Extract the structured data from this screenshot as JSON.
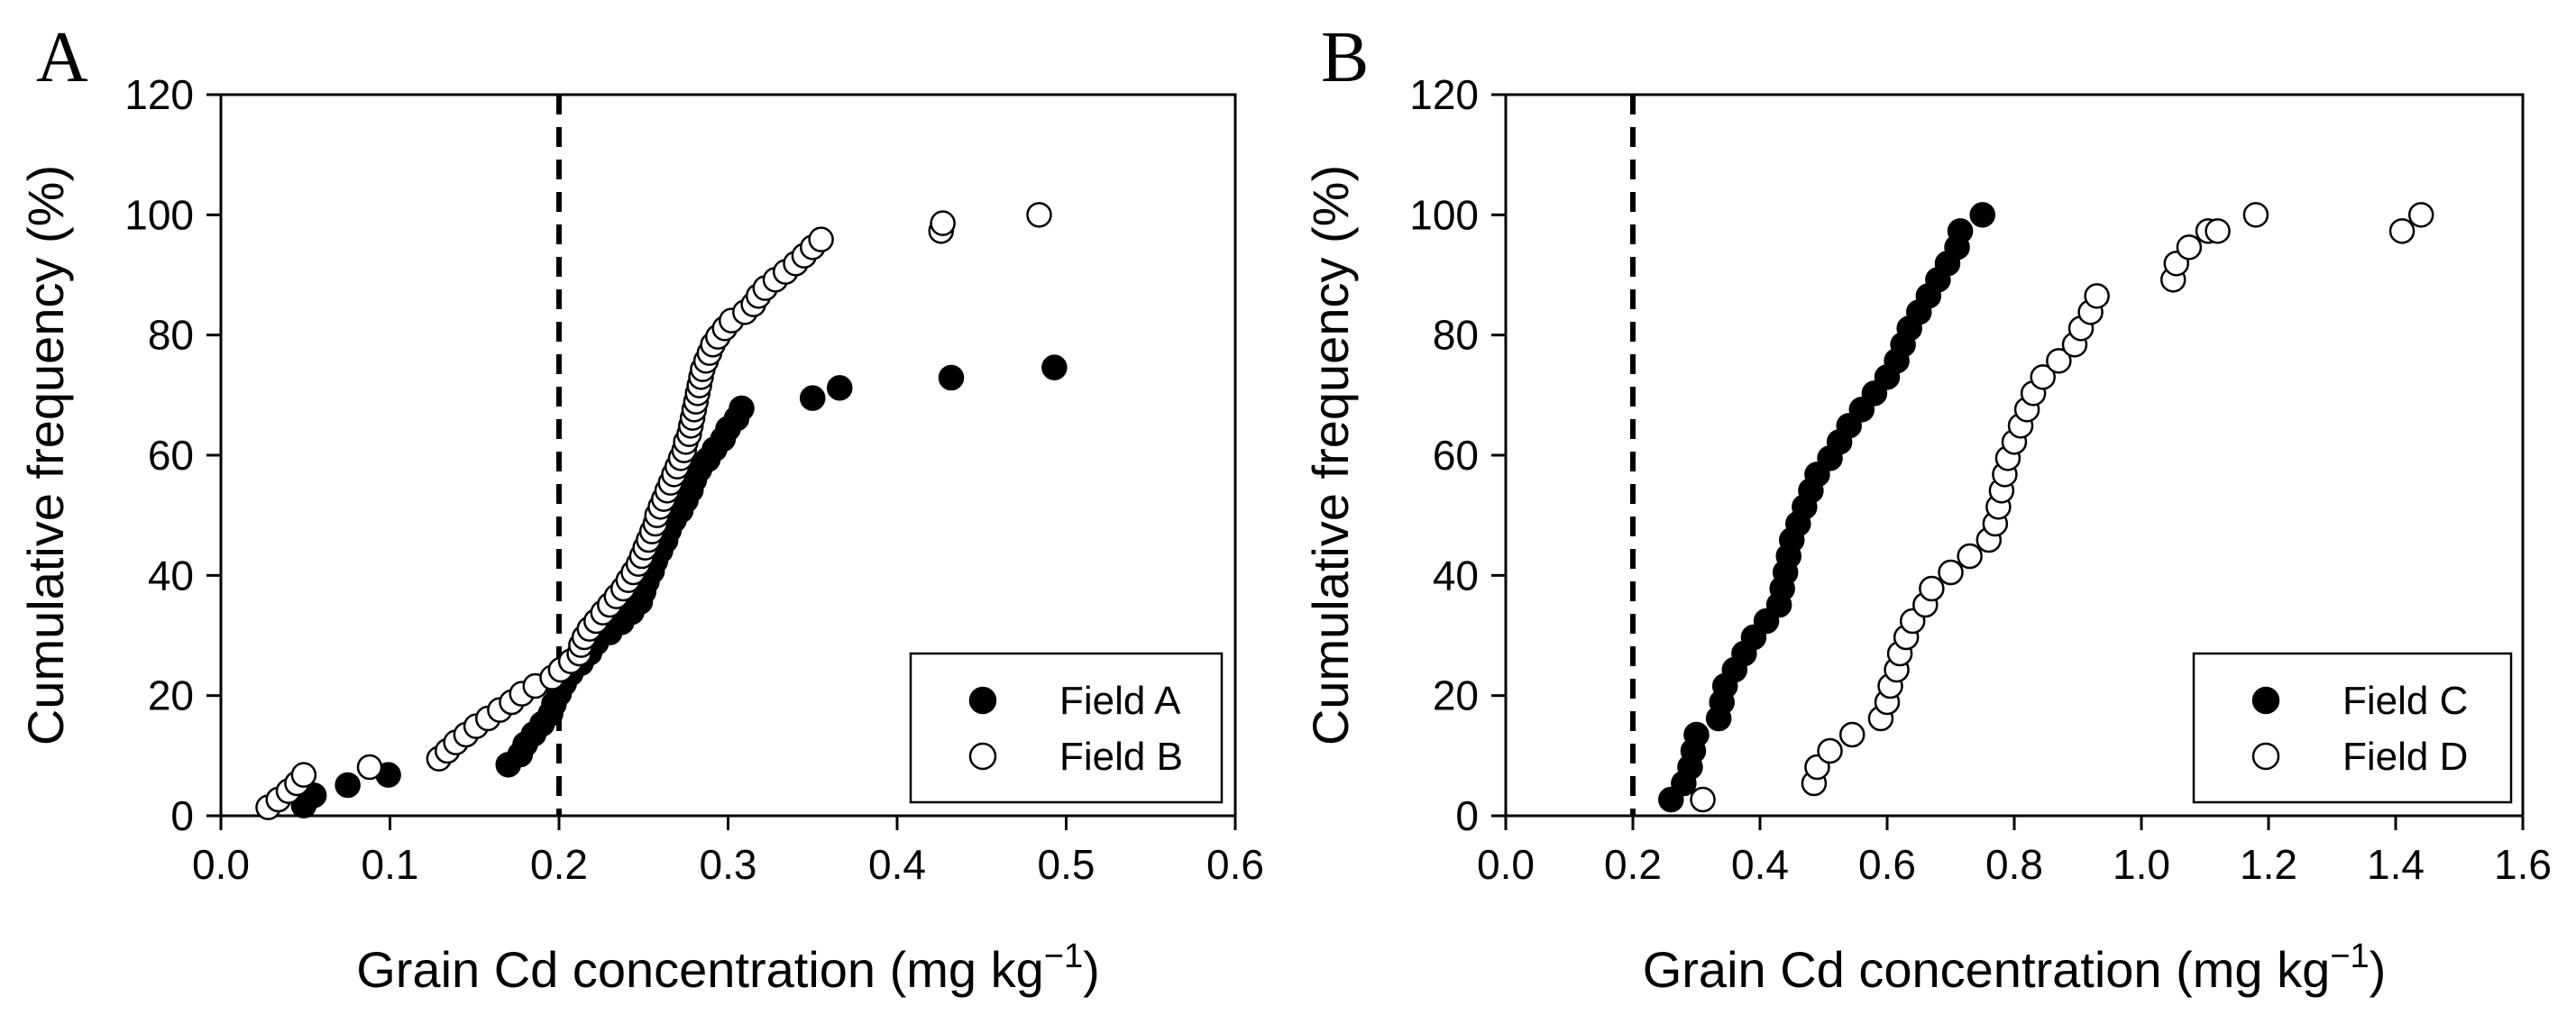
{
  "figure": {
    "panels": [
      "A",
      "B"
    ]
  },
  "chart_data": [
    {
      "type": "scatter",
      "panel": "A",
      "xlabel": "Grain Cd concentration (mg kg",
      "xlabel_exp": "−1",
      "xlabel_close": ")",
      "ylabel": "Cumulative frequency (%)",
      "xlim": [
        0.0,
        0.6
      ],
      "ylim": [
        0,
        120
      ],
      "xticks": [
        "0.0",
        "0.1",
        "0.2",
        "0.3",
        "0.4",
        "0.5",
        "0.6"
      ],
      "yticks": [
        "0",
        "20",
        "40",
        "60",
        "80",
        "100",
        "120"
      ],
      "reference_line": {
        "x": 0.2,
        "style": "dashed"
      },
      "legend_position": "bottom-right",
      "series": [
        {
          "name": "Field A",
          "marker": "filled-circle",
          "x": [
            0.049,
            0.055,
            0.075,
            0.099,
            0.17,
            0.177,
            0.18,
            0.185,
            0.19,
            0.195,
            0.197,
            0.2,
            0.203,
            0.207,
            0.213,
            0.218,
            0.222,
            0.23,
            0.237,
            0.243,
            0.248,
            0.25,
            0.252,
            0.255,
            0.257,
            0.26,
            0.263,
            0.265,
            0.268,
            0.272,
            0.275,
            0.278,
            0.28,
            0.283,
            0.288,
            0.292,
            0.297,
            0.3,
            0.305,
            0.308,
            0.35,
            0.366,
            0.432,
            0.493
          ],
          "y": [
            1.7,
            3.4,
            5.1,
            6.8,
            8.5,
            10.2,
            11.9,
            13.6,
            15.3,
            17.0,
            18.6,
            20.3,
            22.0,
            23.7,
            25.4,
            27.1,
            28.8,
            30.5,
            32.2,
            33.9,
            35.6,
            37.3,
            39.0,
            40.7,
            42.4,
            44.1,
            45.8,
            47.5,
            49.2,
            50.8,
            52.5,
            54.2,
            55.9,
            57.6,
            59.3,
            61.0,
            62.7,
            64.4,
            66.1,
            67.8,
            69.5,
            71.2,
            72.9,
            74.6
          ]
        },
        {
          "name": "Field B",
          "marker": "open-circle",
          "x": [
            0.028,
            0.034,
            0.04,
            0.045,
            0.049,
            0.088,
            0.129,
            0.134,
            0.139,
            0.145,
            0.151,
            0.158,
            0.165,
            0.172,
            0.178,
            0.186,
            0.196,
            0.201,
            0.207,
            0.212,
            0.213,
            0.215,
            0.218,
            0.222,
            0.226,
            0.23,
            0.234,
            0.238,
            0.241,
            0.244,
            0.247,
            0.249,
            0.251,
            0.253,
            0.255,
            0.257,
            0.258,
            0.26,
            0.262,
            0.264,
            0.266,
            0.268,
            0.27,
            0.272,
            0.274,
            0.275,
            0.277,
            0.278,
            0.279,
            0.28,
            0.281,
            0.282,
            0.283,
            0.284,
            0.285,
            0.287,
            0.289,
            0.291,
            0.294,
            0.298,
            0.302,
            0.31,
            0.315,
            0.318,
            0.322,
            0.328,
            0.334,
            0.34,
            0.345,
            0.35,
            0.355,
            0.426,
            0.427,
            0.484
          ],
          "y": [
            1.4,
            2.7,
            4.1,
            5.4,
            6.8,
            8.1,
            9.5,
            10.8,
            12.2,
            13.5,
            14.9,
            16.2,
            17.6,
            18.9,
            20.3,
            21.6,
            23.0,
            24.3,
            25.7,
            27.0,
            28.4,
            29.7,
            31.1,
            32.4,
            33.8,
            35.1,
            36.5,
            37.8,
            39.2,
            40.5,
            41.9,
            43.2,
            44.6,
            45.9,
            47.3,
            48.6,
            50.0,
            51.4,
            52.7,
            54.1,
            55.4,
            56.8,
            58.1,
            59.5,
            60.8,
            62.2,
            63.5,
            64.9,
            66.2,
            67.6,
            68.9,
            70.3,
            71.6,
            73.0,
            74.3,
            75.7,
            77.0,
            78.4,
            79.7,
            81.1,
            82.4,
            83.8,
            85.1,
            86.5,
            87.8,
            89.2,
            90.5,
            91.9,
            93.2,
            94.6,
            95.9,
            97.3,
            98.6,
            100.0
          ]
        }
      ]
    },
    {
      "type": "scatter",
      "panel": "B",
      "xlabel": "Grain Cd concentration (mg kg",
      "xlabel_exp": "−1",
      "xlabel_close": ")",
      "ylabel": "Cumulative frequency (%)",
      "xlim": [
        0.0,
        1.6
      ],
      "ylim": [
        0,
        120
      ],
      "xticks": [
        "0.0",
        "0.2",
        "0.4",
        "0.6",
        "0.8",
        "1.0",
        "1.2",
        "1.4",
        "1.6"
      ],
      "yticks": [
        "0",
        "20",
        "40",
        "60",
        "80",
        "100",
        "120"
      ],
      "reference_line": {
        "x": 0.2,
        "style": "dashed"
      },
      "legend_position": "bottom-right",
      "series": [
        {
          "name": "Field C",
          "marker": "filled-circle",
          "x": [
            0.26,
            0.28,
            0.29,
            0.295,
            0.3,
            0.335,
            0.34,
            0.345,
            0.36,
            0.375,
            0.39,
            0.41,
            0.43,
            0.435,
            0.44,
            0.445,
            0.45,
            0.46,
            0.47,
            0.48,
            0.49,
            0.51,
            0.525,
            0.54,
            0.56,
            0.58,
            0.6,
            0.615,
            0.625,
            0.635,
            0.65,
            0.665,
            0.68,
            0.695,
            0.71,
            0.715,
            0.75
          ],
          "y": [
            2.7,
            5.4,
            8.1,
            10.8,
            13.5,
            16.2,
            18.9,
            21.6,
            24.3,
            27.0,
            29.7,
            32.4,
            35.1,
            37.8,
            40.5,
            43.2,
            45.9,
            48.6,
            51.4,
            54.1,
            56.8,
            59.5,
            62.2,
            64.9,
            67.6,
            70.3,
            73.0,
            75.7,
            78.4,
            81.1,
            83.8,
            86.5,
            89.2,
            91.9,
            94.6,
            97.3,
            100.0
          ]
        },
        {
          "name": "Field D",
          "marker": "open-circle",
          "x": [
            0.31,
            0.485,
            0.49,
            0.51,
            0.545,
            0.59,
            0.6,
            0.605,
            0.615,
            0.62,
            0.63,
            0.64,
            0.66,
            0.67,
            0.7,
            0.73,
            0.76,
            0.77,
            0.775,
            0.78,
            0.785,
            0.79,
            0.8,
            0.81,
            0.82,
            0.83,
            0.845,
            0.87,
            0.895,
            0.905,
            0.92,
            0.93,
            1.05,
            1.055,
            1.075,
            1.105,
            1.12,
            1.18,
            1.41,
            1.44
          ],
          "y": [
            2.7,
            5.4,
            8.1,
            10.8,
            13.5,
            16.2,
            18.9,
            21.6,
            24.3,
            27.0,
            29.7,
            32.4,
            35.1,
            37.8,
            40.5,
            43.2,
            45.9,
            48.6,
            51.4,
            54.1,
            56.8,
            59.5,
            62.2,
            64.9,
            67.6,
            70.3,
            73.0,
            75.7,
            78.4,
            81.1,
            83.8,
            86.5,
            89.2,
            91.9,
            94.6,
            97.3,
            97.3,
            100.0,
            97.3,
            100.0
          ]
        }
      ]
    }
  ]
}
